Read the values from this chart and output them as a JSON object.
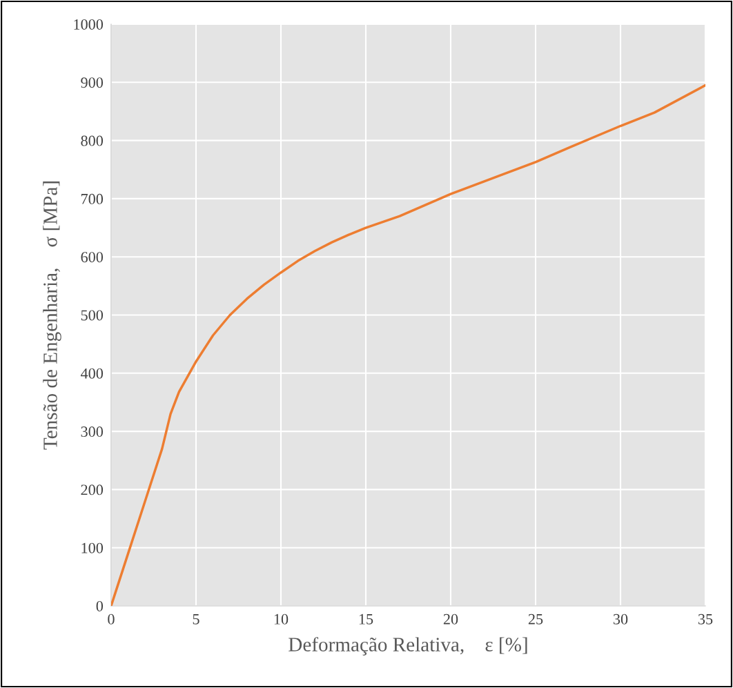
{
  "chart_data": {
    "type": "line",
    "xlabel": "Deformação Relativa,    ε [%]",
    "ylabel": "Tensão de Engenharia,    σ [MPa]",
    "x": [
      0,
      1,
      2,
      3,
      3.5,
      4,
      5,
      6,
      7,
      8,
      9,
      10,
      11,
      12,
      13,
      14,
      15,
      17,
      20,
      22,
      25,
      27,
      30,
      32,
      35
    ],
    "series": [
      {
        "color": "#ed7d31",
        "values": [
          0,
          90,
          180,
          270,
          330,
          368,
          420,
          465,
          500,
          528,
          552,
          573,
          593,
          610,
          625,
          638,
          650,
          670,
          708,
          730,
          763,
          788,
          825,
          848,
          895
        ]
      }
    ],
    "xlim": [
      0,
      35
    ],
    "ylim": [
      0,
      1000
    ],
    "xticks": [
      0,
      5,
      10,
      15,
      20,
      25,
      30,
      35
    ],
    "yticks": [
      0,
      100,
      200,
      300,
      400,
      500,
      600,
      700,
      800,
      900,
      1000
    ],
    "grid": true,
    "marker": "none",
    "line_style": "solid",
    "legend": false
  }
}
